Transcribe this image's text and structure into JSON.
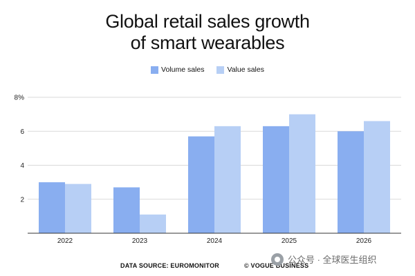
{
  "chart_data": {
    "type": "bar",
    "title_lines": [
      "Global retail sales growth",
      "of smart wearables"
    ],
    "categories": [
      "2022",
      "2023",
      "2024",
      "2025",
      "2026"
    ],
    "series": [
      {
        "name": "Volume sales",
        "color": "#89aef0",
        "values": [
          3.0,
          2.7,
          5.7,
          6.3,
          6.0
        ]
      },
      {
        "name": "Value sales",
        "color": "#b7cff5",
        "values": [
          2.9,
          1.1,
          6.3,
          7.0,
          6.6
        ]
      }
    ],
    "yticks": [
      {
        "value": 2,
        "label": "2"
      },
      {
        "value": 4,
        "label": "4"
      },
      {
        "value": 6,
        "label": "6"
      },
      {
        "value": 8,
        "label": "8%"
      }
    ],
    "ylim": [
      0,
      8
    ],
    "grid": true,
    "legend_position": "top-center"
  },
  "footer": {
    "source": "DATA SOURCE: EUROMONITOR",
    "credit": "© VOGUE BUSINESS"
  },
  "watermark": {
    "text": "公众号 · 全球医生组织"
  }
}
